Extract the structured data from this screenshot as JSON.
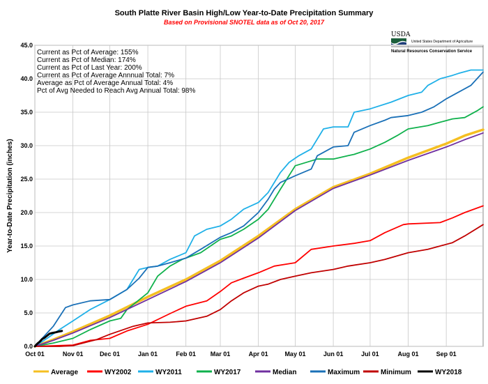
{
  "chart_data": {
    "type": "line",
    "title": "South Platte River Basin High/Low Year-to-Date Precipitation Summary",
    "subtitle": "Based on Provisional SNOTEL data as of Oct 20, 2017",
    "ylabel": "Year-to-Date Precipitation (inches)",
    "xlabel": "",
    "ylim": [
      0,
      45
    ],
    "xlim": [
      0,
      365
    ],
    "grid": true,
    "legend_position": "bottom",
    "y_ticks": [
      "0.0",
      "5.0",
      "10.0",
      "15.0",
      "20.0",
      "25.0",
      "30.0",
      "35.0",
      "40.0",
      "45.0"
    ],
    "x_ticks": [
      {
        "label": "Oct 01",
        "day": 0
      },
      {
        "label": "Nov 01",
        "day": 31
      },
      {
        "label": "Dec 01",
        "day": 61
      },
      {
        "label": "Jan 01",
        "day": 92
      },
      {
        "label": "Feb 01",
        "day": 123
      },
      {
        "label": "Mar 01",
        "day": 151
      },
      {
        "label": "Apr 01",
        "day": 182
      },
      {
        "label": "May 01",
        "day": 212
      },
      {
        "label": "Jun 01",
        "day": 243
      },
      {
        "label": "Jul 01",
        "day": 273
      },
      {
        "label": "Aug 01",
        "day": 304
      },
      {
        "label": "Sep 01",
        "day": 335
      }
    ],
    "stats": [
      "Current  as Pct of Average:  155%",
      "Current  as Pct of Median:  174%",
      "Current  as Pct of Last Year: 200%",
      "Current  as Pct of Average  Annnual Total:  7%",
      "Average  as Pct of Average  Annual Total:  4%",
      "Pct of Avg Needed  to Reach Avg Annual Total:  98%"
    ],
    "series": [
      {
        "name": "Average",
        "color": "#f5bf22",
        "width": 3.5,
        "x": [
          0,
          15,
          31,
          61,
          92,
          123,
          151,
          182,
          212,
          243,
          273,
          304,
          335,
          350,
          365
        ],
        "y": [
          0,
          1.0,
          2.2,
          4.6,
          7.4,
          10.0,
          12.8,
          16.5,
          20.5,
          23.8,
          25.8,
          28.2,
          30.3,
          31.5,
          32.4
        ]
      },
      {
        "name": "WY2002",
        "color": "#ff0000",
        "width": 1.8,
        "x": [
          0,
          31,
          45,
          61,
          75,
          92,
          110,
          123,
          140,
          151,
          160,
          170,
          182,
          195,
          212,
          225,
          243,
          260,
          273,
          285,
          300,
          304,
          330,
          340,
          350,
          365
        ],
        "y": [
          0,
          0.2,
          0.9,
          1.2,
          2.3,
          3.3,
          4.9,
          6.0,
          6.8,
          8.2,
          9.5,
          10.2,
          11.0,
          12.0,
          12.5,
          14.5,
          15.0,
          15.4,
          15.8,
          17.0,
          18.2,
          18.3,
          18.5,
          19.2,
          20.0,
          21.0
        ]
      },
      {
        "name": "WY2011",
        "color": "#1fb0e8",
        "width": 1.8,
        "x": [
          0,
          10,
          20,
          31,
          45,
          61,
          75,
          85,
          92,
          100,
          110,
          123,
          130,
          140,
          151,
          160,
          170,
          182,
          190,
          200,
          207,
          215,
          225,
          235,
          243,
          255,
          260,
          273,
          290,
          304,
          315,
          320,
          330,
          340,
          345,
          355,
          365
        ],
        "y": [
          0,
          1.2,
          2.5,
          3.8,
          5.5,
          7.0,
          8.5,
          11.5,
          11.8,
          12.0,
          13.0,
          14.0,
          16.5,
          17.5,
          18.0,
          19.0,
          20.5,
          21.5,
          23.0,
          26.0,
          27.5,
          28.5,
          29.5,
          32.5,
          32.8,
          32.8,
          35.0,
          35.5,
          36.5,
          37.5,
          38.0,
          39.0,
          40.0,
          40.5,
          40.8,
          41.3,
          41.3
        ]
      },
      {
        "name": "WY2017",
        "color": "#0fb14c",
        "width": 1.8,
        "x": [
          0,
          15,
          31,
          45,
          61,
          70,
          75,
          92,
          100,
          110,
          120,
          123,
          135,
          151,
          160,
          170,
          182,
          190,
          200,
          212,
          230,
          243,
          255,
          260,
          273,
          285,
          295,
          304,
          320,
          330,
          340,
          350,
          356,
          360,
          365
        ],
        "y": [
          0,
          0.5,
          1.2,
          2.5,
          3.8,
          4.2,
          5.5,
          8.0,
          10.5,
          12.0,
          13.0,
          13.2,
          14.0,
          16.0,
          16.5,
          17.5,
          19.0,
          20.5,
          23.5,
          27.0,
          28.0,
          28.0,
          28.5,
          28.7,
          29.5,
          30.5,
          31.5,
          32.5,
          33.0,
          33.5,
          34.0,
          34.2,
          34.8,
          35.2,
          35.8
        ]
      },
      {
        "name": "Median",
        "color": "#7030a0",
        "width": 1.8,
        "x": [
          0,
          15,
          31,
          61,
          92,
          123,
          151,
          182,
          212,
          243,
          273,
          304,
          335,
          350,
          365
        ],
        "y": [
          0,
          0.9,
          2.0,
          4.3,
          7.0,
          9.7,
          12.5,
          16.2,
          20.3,
          23.6,
          25.6,
          27.8,
          29.8,
          30.9,
          31.9
        ]
      },
      {
        "name": "Maximum",
        "color": "#1a70b7",
        "width": 1.8,
        "x": [
          0,
          15,
          25,
          31,
          45,
          61,
          75,
          85,
          92,
          100,
          110,
          123,
          135,
          151,
          160,
          170,
          182,
          190,
          195,
          200,
          212,
          225,
          230,
          243,
          255,
          260,
          273,
          285,
          290,
          304,
          315,
          325,
          335,
          345,
          355,
          365
        ],
        "y": [
          0,
          3.0,
          5.8,
          6.2,
          6.8,
          7.0,
          8.5,
          10.2,
          11.8,
          12.0,
          12.5,
          13.2,
          14.5,
          16.3,
          17.0,
          18.0,
          20.0,
          22.0,
          23.5,
          24.5,
          25.5,
          26.5,
          28.5,
          29.8,
          30.0,
          32.0,
          33.0,
          33.8,
          34.2,
          34.5,
          35.0,
          35.8,
          37.0,
          38.0,
          39.0,
          41.0
        ]
      },
      {
        "name": "Minimum",
        "color": "#c00000",
        "width": 1.8,
        "x": [
          0,
          20,
          31,
          50,
          61,
          80,
          92,
          110,
          123,
          140,
          151,
          160,
          170,
          182,
          190,
          200,
          212,
          225,
          243,
          255,
          273,
          285,
          304,
          320,
          330,
          340,
          350,
          365
        ],
        "y": [
          0,
          0,
          0.1,
          1.0,
          1.8,
          3.0,
          3.5,
          3.6,
          3.8,
          4.5,
          5.5,
          6.8,
          8.0,
          9.0,
          9.3,
          10.0,
          10.5,
          11.0,
          11.5,
          12.0,
          12.5,
          13.0,
          14.0,
          14.5,
          15.0,
          15.5,
          16.5,
          18.2
        ]
      },
      {
        "name": "WY2018",
        "color": "#000000",
        "width": 3,
        "x": [
          0,
          2,
          4,
          6,
          8,
          10,
          12,
          14,
          17,
          19,
          22
        ],
        "y": [
          0,
          0.4,
          0.7,
          1.1,
          1.3,
          1.6,
          1.9,
          2.0,
          2.1,
          2.2,
          2.3
        ]
      }
    ],
    "legend_order": [
      "Average",
      "WY2002",
      "WY2011",
      "WY2017",
      "Median",
      "Maximum",
      "Minimum",
      "WY2018"
    ]
  },
  "logo": {
    "usda": "USDA",
    "department": "United States Department of Agriculture",
    "agency": "Natural Resources Conservation Service",
    "colors": {
      "green": "#1b5e3a",
      "blue": "#1f3f7a"
    }
  }
}
